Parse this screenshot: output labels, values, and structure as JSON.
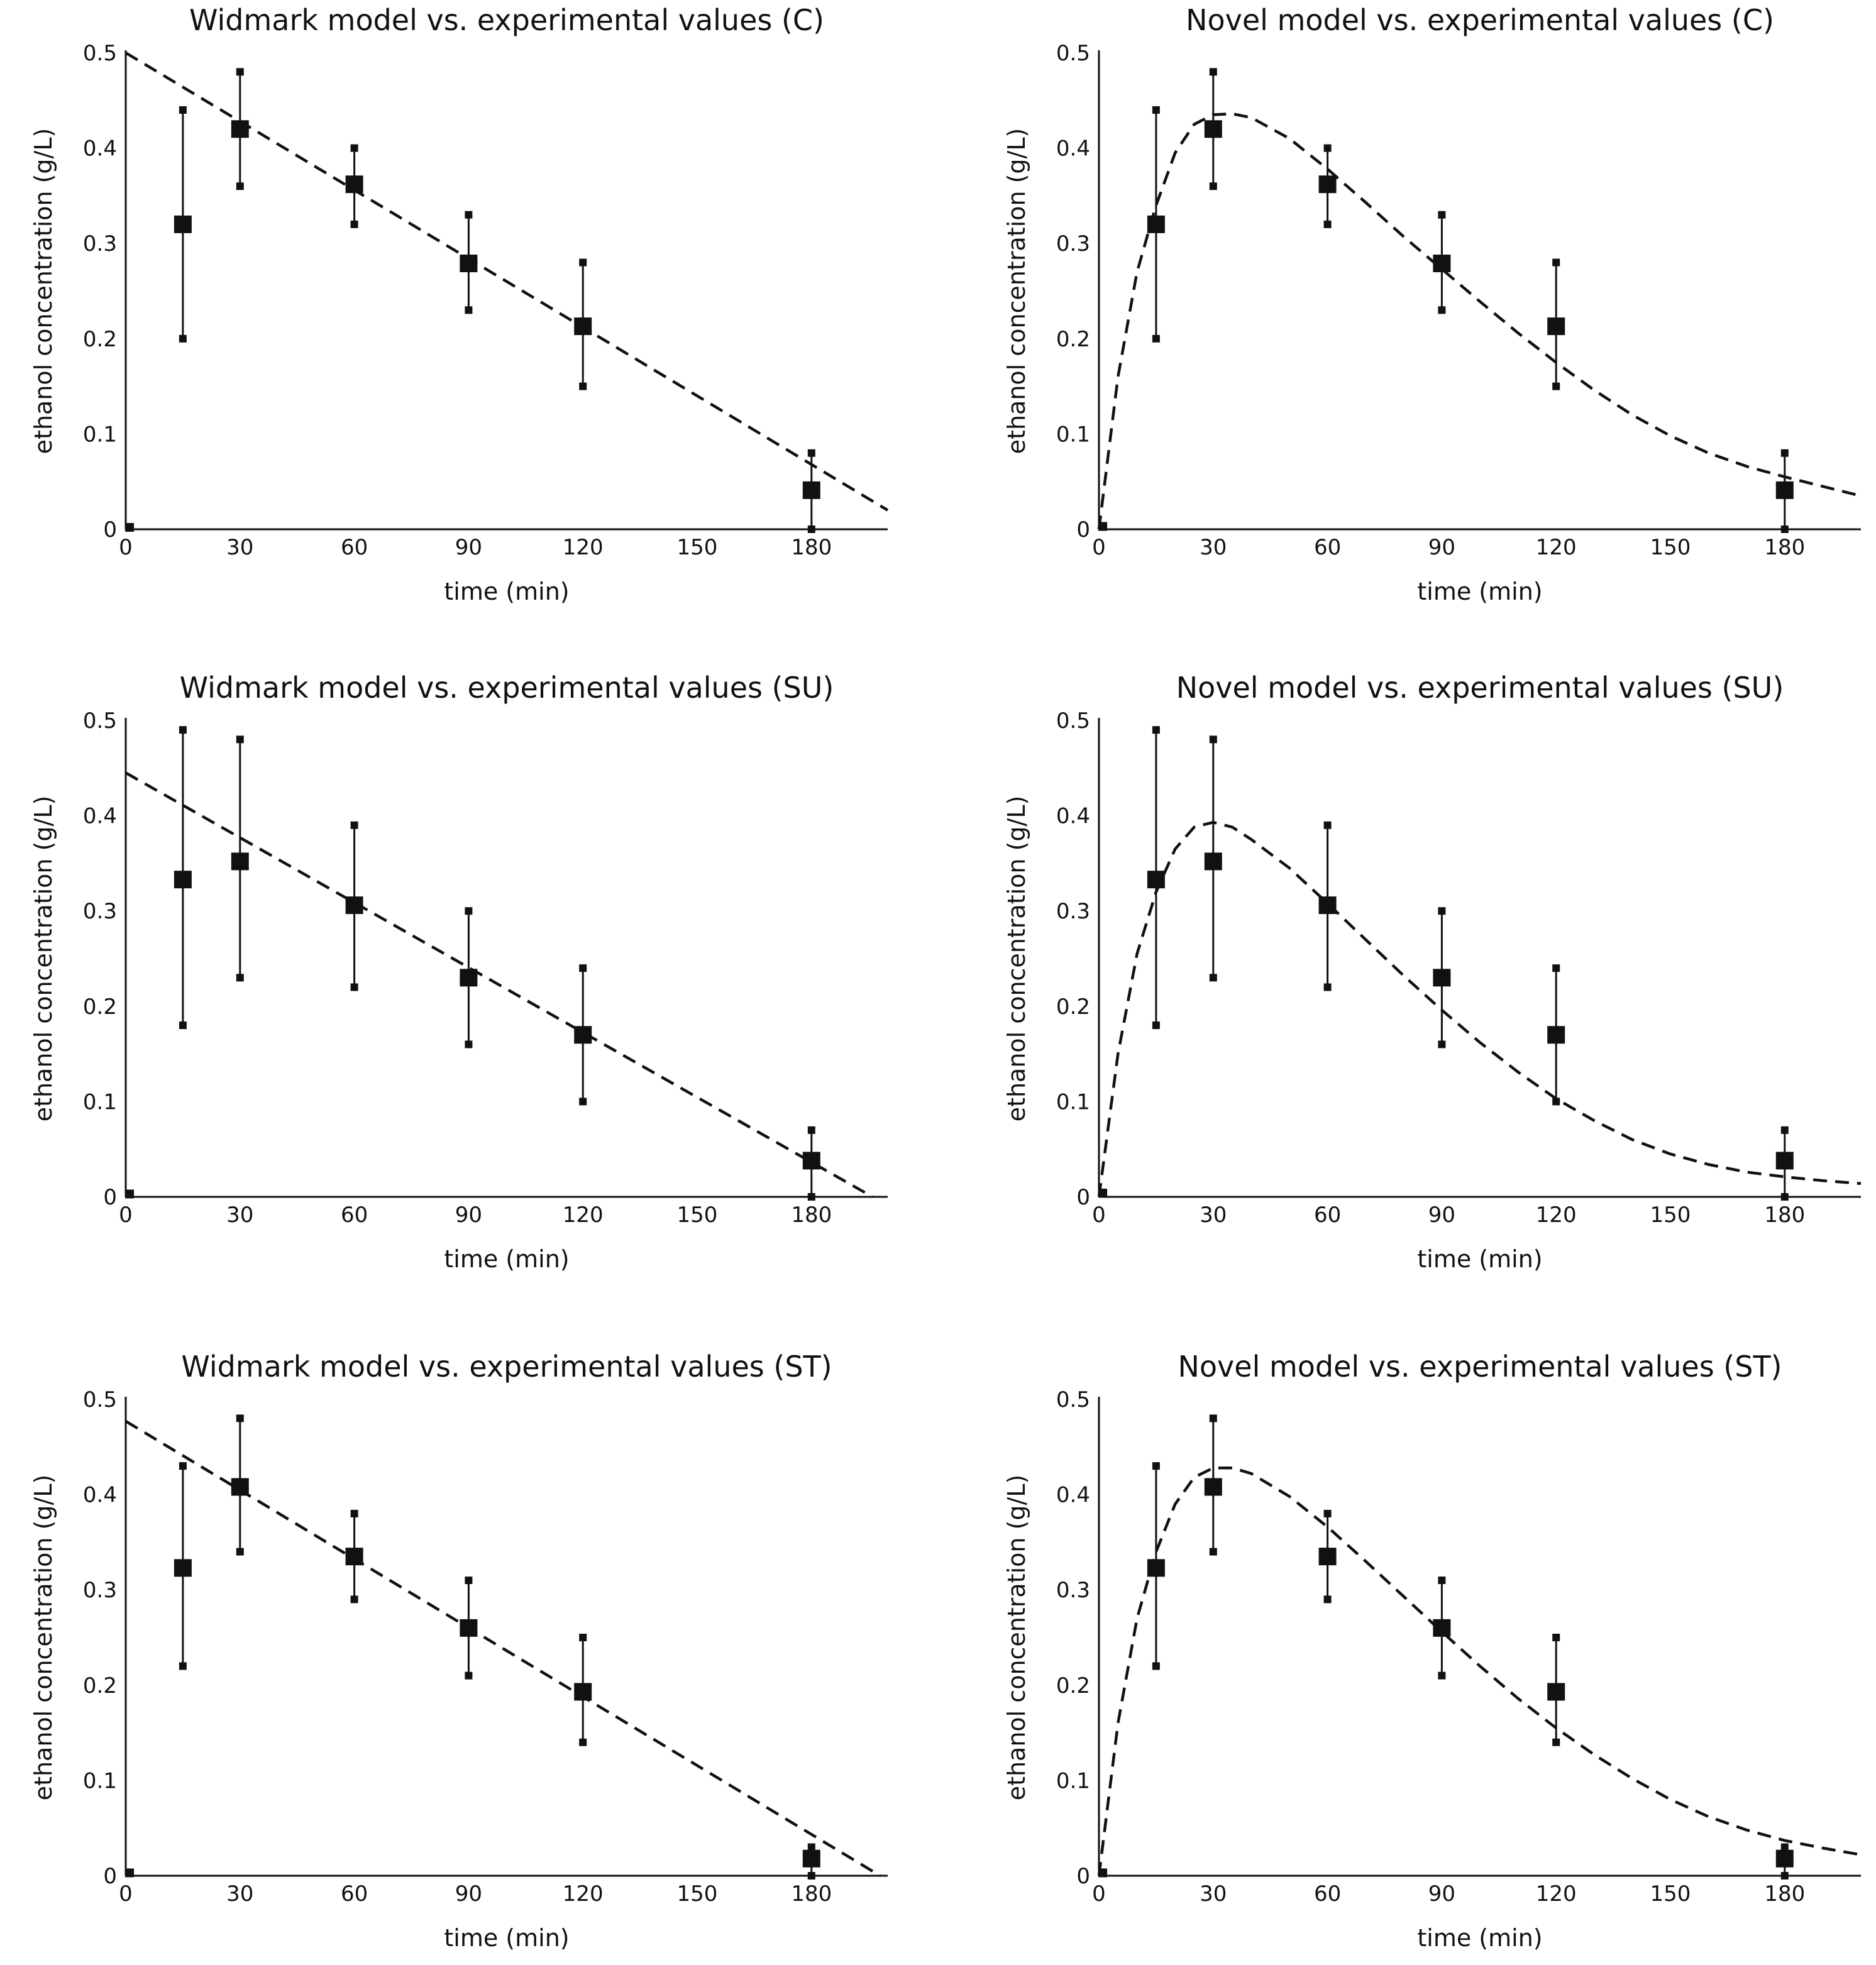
{
  "chart_data": [
    {
      "type": "scatter",
      "title": "Widmark model vs. experimental values (C)",
      "xlabel": "time (min)",
      "ylabel": "ethanol concentration (g/L)",
      "xlim": [
        0,
        200
      ],
      "ylim": [
        0,
        0.5
      ],
      "xticks": [
        "0",
        "30",
        "60",
        "90",
        "120",
        "150",
        "180"
      ],
      "yticks": [
        "0",
        "0.1",
        "0.2",
        "0.3",
        "0.4",
        "0.5"
      ],
      "series": [
        {
          "name": "experimental values",
          "x": [
            1,
            15,
            30,
            60,
            90,
            120,
            180
          ],
          "y": [
            0.002,
            0.32,
            0.42,
            0.362,
            0.279,
            0.213,
            0.041
          ],
          "yerr_low": [
            0.002,
            0.2,
            0.36,
            0.32,
            0.23,
            0.15,
            0.0
          ],
          "yerr_high": [
            0.002,
            0.44,
            0.48,
            0.4,
            0.33,
            0.28,
            0.08
          ]
        },
        {
          "name": "Widmark model",
          "x": [
            0,
            200
          ],
          "y": [
            0.5,
            0.02
          ]
        }
      ]
    },
    {
      "type": "scatter",
      "title": "Novel model vs. experimental values (C)",
      "xlabel": "time (min)",
      "ylabel": "ethanol concentration (g/L)",
      "xlim": [
        0,
        200
      ],
      "ylim": [
        0,
        0.5
      ],
      "xticks": [
        "0",
        "30",
        "60",
        "90",
        "120",
        "150",
        "180"
      ],
      "yticks": [
        "0",
        "0.1",
        "0.2",
        "0.3",
        "0.4",
        "0.5"
      ],
      "series": [
        {
          "name": "experimental values",
          "x": [
            1,
            15,
            30,
            60,
            90,
            120,
            180
          ],
          "y": [
            0.003,
            0.32,
            0.42,
            0.362,
            0.279,
            0.213,
            0.041
          ],
          "yerr_low": [
            0.003,
            0.2,
            0.36,
            0.32,
            0.23,
            0.15,
            0.0
          ],
          "yerr_high": [
            0.003,
            0.44,
            0.48,
            0.4,
            0.33,
            0.28,
            0.08
          ]
        },
        {
          "name": "Novel model",
          "x": [
            0,
            5,
            10,
            15,
            20,
            25,
            30,
            35,
            40,
            50,
            60,
            70,
            80,
            90,
            100,
            110,
            120,
            130,
            140,
            150,
            160,
            170,
            180,
            190,
            200
          ],
          "y": [
            0,
            0.16,
            0.27,
            0.34,
            0.395,
            0.425,
            0.435,
            0.436,
            0.432,
            0.41,
            0.378,
            0.343,
            0.307,
            0.273,
            0.239,
            0.206,
            0.175,
            0.146,
            0.12,
            0.098,
            0.08,
            0.066,
            0.055,
            0.045,
            0.035
          ]
        }
      ]
    },
    {
      "type": "scatter",
      "title": "Widmark model vs. experimental values (SU)",
      "xlabel": "time (min)",
      "ylabel": "ethanol concentration (g/L)",
      "xlim": [
        0,
        200
      ],
      "ylim": [
        0,
        0.5
      ],
      "xticks": [
        "0",
        "30",
        "60",
        "90",
        "120",
        "150",
        "180"
      ],
      "yticks": [
        "0",
        "0.1",
        "0.2",
        "0.3",
        "0.4",
        "0.5"
      ],
      "series": [
        {
          "name": "experimental values",
          "x": [
            1,
            15,
            30,
            60,
            90,
            120,
            180
          ],
          "y": [
            0.003,
            0.333,
            0.352,
            0.306,
            0.23,
            0.17,
            0.038
          ],
          "yerr_low": [
            0.003,
            0.18,
            0.23,
            0.22,
            0.16,
            0.1,
            0.0
          ],
          "yerr_high": [
            0.003,
            0.49,
            0.48,
            0.39,
            0.3,
            0.24,
            0.07
          ]
        },
        {
          "name": "Widmark model",
          "x": [
            0,
            196
          ],
          "y": [
            0.445,
            0.0
          ]
        }
      ]
    },
    {
      "type": "scatter",
      "title": "Novel model vs. experimental values (SU)",
      "xlabel": "time (min)",
      "ylabel": "ethanol concentration (g/L)",
      "xlim": [
        0,
        200
      ],
      "ylim": [
        0,
        0.5
      ],
      "xticks": [
        "0",
        "30",
        "60",
        "90",
        "120",
        "150",
        "180"
      ],
      "yticks": [
        "0",
        "0.1",
        "0.2",
        "0.3",
        "0.4",
        "0.5"
      ],
      "series": [
        {
          "name": "experimental values",
          "x": [
            1,
            15,
            30,
            60,
            90,
            120,
            180
          ],
          "y": [
            0.004,
            0.333,
            0.352,
            0.306,
            0.23,
            0.17,
            0.038
          ],
          "yerr_low": [
            0.004,
            0.18,
            0.23,
            0.22,
            0.16,
            0.1,
            0.0
          ],
          "yerr_high": [
            0.004,
            0.49,
            0.48,
            0.39,
            0.3,
            0.24,
            0.07
          ]
        },
        {
          "name": "Novel model",
          "x": [
            0,
            5,
            10,
            15,
            20,
            25,
            30,
            35,
            40,
            50,
            60,
            70,
            80,
            90,
            100,
            110,
            120,
            130,
            140,
            150,
            160,
            170,
            180,
            190,
            200
          ],
          "y": [
            0,
            0.15,
            0.255,
            0.32,
            0.365,
            0.388,
            0.393,
            0.388,
            0.375,
            0.345,
            0.308,
            0.27,
            0.232,
            0.196,
            0.162,
            0.131,
            0.103,
            0.08,
            0.06,
            0.045,
            0.034,
            0.026,
            0.021,
            0.017,
            0.014
          ]
        }
      ]
    },
    {
      "type": "scatter",
      "title": "Widmark model vs. experimental values (ST)",
      "xlabel": "time (min)",
      "ylabel": "ethanol concentration (g/L)",
      "xlim": [
        0,
        200
      ],
      "ylim": [
        0,
        0.5
      ],
      "xticks": [
        "0",
        "30",
        "60",
        "90",
        "120",
        "150",
        "180"
      ],
      "yticks": [
        "0",
        "0.1",
        "0.2",
        "0.3",
        "0.4",
        "0.5"
      ],
      "series": [
        {
          "name": "experimental values",
          "x": [
            1,
            15,
            30,
            60,
            90,
            120,
            180
          ],
          "y": [
            0.003,
            0.323,
            0.408,
            0.335,
            0.26,
            0.193,
            0.018
          ],
          "yerr_low": [
            0.003,
            0.22,
            0.34,
            0.29,
            0.21,
            0.14,
            0.0
          ],
          "yerr_high": [
            0.003,
            0.43,
            0.48,
            0.38,
            0.31,
            0.25,
            0.03
          ]
        },
        {
          "name": "Widmark model",
          "x": [
            0,
            198
          ],
          "y": [
            0.477,
            0.0
          ]
        }
      ]
    },
    {
      "type": "scatter",
      "title": "Novel model vs. experimental values (ST)",
      "xlabel": "time (min)",
      "ylabel": "ethanol concentration (g/L)",
      "xlim": [
        0,
        200
      ],
      "ylim": [
        0,
        0.5
      ],
      "xticks": [
        "0",
        "30",
        "60",
        "90",
        "120",
        "150",
        "180"
      ],
      "yticks": [
        "0",
        "0.1",
        "0.2",
        "0.3",
        "0.4",
        "0.5"
      ],
      "series": [
        {
          "name": "experimental values",
          "x": [
            1,
            15,
            30,
            60,
            90,
            120,
            180
          ],
          "y": [
            0.003,
            0.323,
            0.408,
            0.335,
            0.26,
            0.193,
            0.018
          ],
          "yerr_low": [
            0.003,
            0.22,
            0.34,
            0.29,
            0.21,
            0.14,
            0.0
          ],
          "yerr_high": [
            0.003,
            0.43,
            0.48,
            0.38,
            0.31,
            0.25,
            0.03
          ]
        },
        {
          "name": "Novel model",
          "x": [
            0,
            5,
            10,
            15,
            20,
            25,
            30,
            35,
            40,
            50,
            60,
            70,
            80,
            90,
            100,
            110,
            120,
            130,
            140,
            150,
            160,
            170,
            180,
            190,
            200
          ],
          "y": [
            0,
            0.16,
            0.27,
            0.34,
            0.39,
            0.418,
            0.428,
            0.428,
            0.422,
            0.398,
            0.366,
            0.33,
            0.293,
            0.256,
            0.22,
            0.186,
            0.155,
            0.127,
            0.102,
            0.08,
            0.062,
            0.048,
            0.037,
            0.029,
            0.022
          ]
        }
      ]
    }
  ]
}
